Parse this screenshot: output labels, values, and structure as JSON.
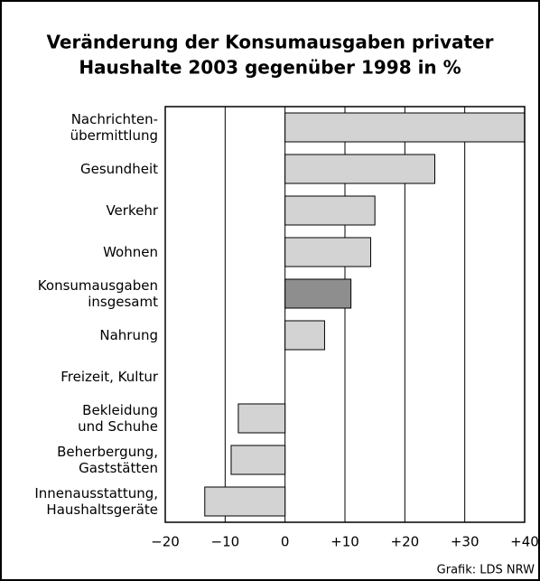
{
  "chart_data": {
    "type": "bar",
    "orientation": "horizontal",
    "title": [
      "Veränderung der Konsumausgaben privater",
      "Haushalte 2003 gegenüber 1998 in %"
    ],
    "categories": [
      "Nachrichten-\nübermittlung",
      "Gesundheit",
      "Verkehr",
      "Wohnen",
      "Konsumausgaben\ninsgesamt",
      "Nahrung",
      "Freizeit, Kultur",
      "Bekleidung\nund Schuhe",
      "Beherbergung,\nGaststätten",
      "Innenausstattung,\nHaushaltsgeräte"
    ],
    "values": [
      40,
      25,
      15,
      14.3,
      11,
      6.6,
      0,
      -7.8,
      -9,
      -13.4
    ],
    "colors": [
      "#d3d3d3",
      "#d3d3d3",
      "#d3d3d3",
      "#d3d3d3",
      "#8e8e8e",
      "#d3d3d3",
      "#d3d3d3",
      "#d3d3d3",
      "#d3d3d3",
      "#d3d3d3"
    ],
    "xlim": [
      -20,
      40
    ],
    "xticks": [
      {
        "value": -20,
        "label": "−20"
      },
      {
        "value": -10,
        "label": "−10"
      },
      0,
      {
        "value": 10,
        "label": "+10"
      },
      {
        "value": 20,
        "label": "+20"
      },
      {
        "value": 30,
        "label": "+30"
      },
      {
        "value": 40,
        "label": "+40"
      }
    ],
    "grid": true,
    "source": "Grafik: LDS NRW"
  }
}
